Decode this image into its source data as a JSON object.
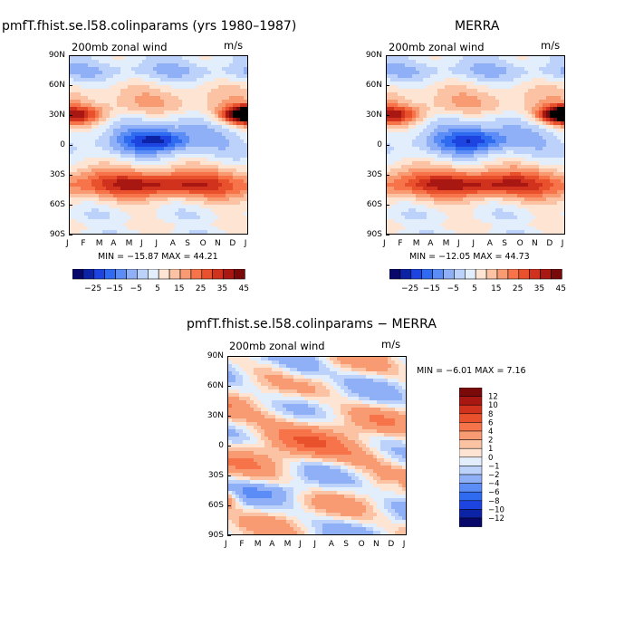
{
  "chart_data": [
    {
      "type": "heatmap",
      "title": "pmfT.fhist.se.l58.colinparams (yrs 1980–1987)",
      "subtitle_left": "200mb  zonal  wind",
      "subtitle_right": "m/s",
      "x_ticks": [
        "J",
        "F",
        "M",
        "A",
        "M",
        "J",
        "J",
        "A",
        "S",
        "O",
        "N",
        "D",
        "J"
      ],
      "y_ticks": [
        "90N",
        "60N",
        "30N",
        "0",
        "30S",
        "60S",
        "90S"
      ],
      "min_label": "MIN = −15.87 MAX =  44.21",
      "min": -15.87,
      "max": 44.21,
      "colorbar_labels": [
        "−25",
        "−15",
        "−5",
        "5",
        "15",
        "25",
        "35",
        "45"
      ],
      "colorbar_levels": [
        -30,
        -25,
        -20,
        -15,
        -10,
        -5,
        0,
        5,
        10,
        15,
        20,
        25,
        30,
        35,
        40,
        45
      ]
    },
    {
      "type": "heatmap",
      "title": "MERRA",
      "subtitle_left": "200mb  zonal  wind",
      "subtitle_right": "m/s",
      "x_ticks": [
        "J",
        "F",
        "M",
        "A",
        "M",
        "J",
        "J",
        "A",
        "S",
        "O",
        "N",
        "D",
        "J"
      ],
      "y_ticks": [
        "90N",
        "60N",
        "30N",
        "0",
        "30S",
        "60S",
        "90S"
      ],
      "min_label": "MIN = −12.05 MAX =  44.73",
      "min": -12.05,
      "max": 44.73,
      "colorbar_labels": [
        "−25",
        "−15",
        "−5",
        "5",
        "15",
        "25",
        "35",
        "45"
      ],
      "colorbar_levels": [
        -30,
        -25,
        -20,
        -15,
        -10,
        -5,
        0,
        5,
        10,
        15,
        20,
        25,
        30,
        35,
        40,
        45
      ]
    },
    {
      "type": "heatmap",
      "title": "pmfT.fhist.se.l58.colinparams − MERRA",
      "subtitle_left": "200mb  zonal  wind",
      "subtitle_right": "m/s",
      "x_ticks": [
        "J",
        "F",
        "M",
        "A",
        "M",
        "J",
        "J",
        "A",
        "S",
        "O",
        "N",
        "D",
        "J"
      ],
      "y_ticks": [
        "90N",
        "60N",
        "30N",
        "0",
        "30S",
        "60S",
        "90S"
      ],
      "min_label": "MIN =   −6.01 MAX =   7.16",
      "min": -6.01,
      "max": 7.16,
      "colorbar_labels": [
        "12",
        "10",
        "8",
        "6",
        "4",
        "2",
        "1",
        "0",
        "−1",
        "−2",
        "−4",
        "−6",
        "−8",
        "−10",
        "−12"
      ],
      "colorbar_levels": [
        -12,
        -10,
        -8,
        -6,
        -4,
        -2,
        -1,
        0,
        1,
        2,
        4,
        6,
        8,
        10,
        12
      ]
    }
  ],
  "palette_full": [
    "#08086b",
    "#0d23a6",
    "#1d44e0",
    "#2f6bf0",
    "#5c8cf5",
    "#8fb0f7",
    "#bcd2fa",
    "#e3eefd",
    "#fde4d3",
    "#fbc2a3",
    "#f99b72",
    "#f7744b",
    "#e9502c",
    "#d0321e",
    "#a81711",
    "#7a0a0a"
  ],
  "palette_diff": [
    "#7a0a0a",
    "#a81711",
    "#d0321e",
    "#e9502c",
    "#f7744b",
    "#f99b72",
    "#fbc2a3",
    "#fde4d3",
    "#e3eefd",
    "#bcd2fa",
    "#8fb0f7",
    "#5c8cf5",
    "#2f6bf0",
    "#1d44e0",
    "#0d23a6",
    "#08086b"
  ]
}
